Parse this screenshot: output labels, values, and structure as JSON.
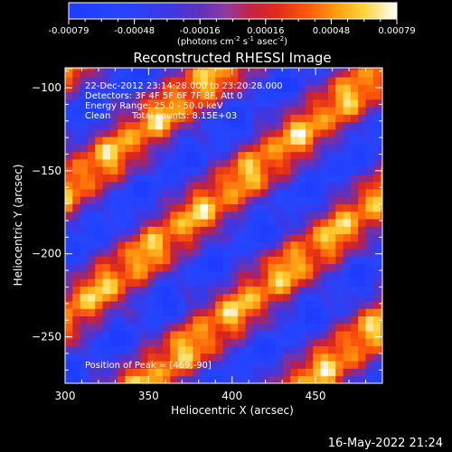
{
  "window": {
    "footer_timestamp": "16-May-2022 21:24"
  },
  "colorbar": {
    "min": -0.00079,
    "max": 0.00079,
    "tick_labels": [
      "-0.00079",
      "-0.00048",
      "-0.00016",
      "0.00016",
      "0.00048",
      "0.00079"
    ],
    "unit_label_parts": {
      "left": "(photons cm",
      "exp1": "-2",
      "mid1": " s",
      "exp2": "-1",
      "mid2": " asec",
      "exp3": "-2",
      "right": ")"
    }
  },
  "chart_data": {
    "type": "heatmap",
    "title": "Reconstructed RHESSI Image",
    "xlabel": "Heliocentric X (arcsec)",
    "ylabel": "Heliocentric Y (arcsec)",
    "xlim": [
      300,
      490
    ],
    "ylim": [
      -278,
      -88
    ],
    "xticks": [
      300,
      350,
      400,
      450
    ],
    "yticks": [
      -100,
      -150,
      -200,
      -250
    ],
    "x_tick_labels": [
      "300",
      "350",
      "400",
      "450"
    ],
    "y_tick_labels": [
      "−100",
      "−150",
      "−200",
      "−250"
    ],
    "colormap": "RHESSI blue-purple-red-yellow-white",
    "annotations": {
      "time_range": "22-Dec-2012 23:14:28.000 to 23:20:28.000",
      "detectors": "Detectors: 3F 4F 5F 6F 7F 8F, Att 0",
      "energy_range": "Energy Range: 25.0 - 50.0 keV",
      "clean": "Clean",
      "total_counts": "Total counts: 8.15E+03",
      "peak": "Position of Peak = [469,-90]"
    },
    "pattern": {
      "description_values_in_data_units": "diagonal stripes of high intensity",
      "stripe_orientation_deg": 38,
      "stripe_spacing_arcsec": 60,
      "peak_position": [
        469,
        -90
      ]
    }
  },
  "colors": {
    "background": "#000000",
    "axis": "#ffffff",
    "text": "#ffffff",
    "title": "#ffffff"
  }
}
